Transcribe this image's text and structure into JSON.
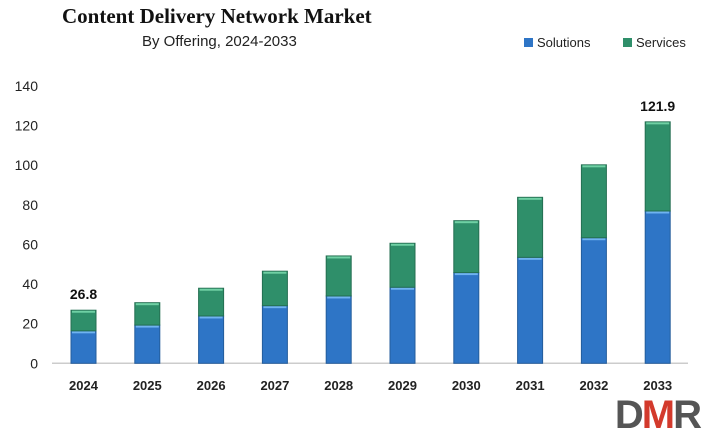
{
  "chart_data": {
    "type": "bar",
    "stacked": true,
    "title": "Content Delivery Network Market",
    "subtitle": "By Offering, 2024-2033",
    "xlabel": "",
    "ylabel": "",
    "ylim": [
      0,
      140
    ],
    "yticks": [
      0,
      20,
      40,
      60,
      80,
      100,
      120,
      140
    ],
    "grid": false,
    "legend_position": "top-right",
    "categories": [
      "2024",
      "2025",
      "2026",
      "2027",
      "2028",
      "2029",
      "2030",
      "2031",
      "2032",
      "2033"
    ],
    "series": [
      {
        "name": "Solutions",
        "color": "#2e75c6",
        "values": [
          16.4,
          19.3,
          23.9,
          29.1,
          34.0,
          38.4,
          45.8,
          53.5,
          63.4,
          76.9
        ]
      },
      {
        "name": "Services",
        "color": "#2f8f6a",
        "values": [
          10.4,
          11.3,
          14.0,
          17.4,
          20.2,
          22.2,
          26.2,
          30.3,
          36.8,
          45.0
        ]
      }
    ],
    "data_labels": [
      {
        "category": "2024",
        "text": "26.8"
      },
      {
        "category": "2033",
        "text": "121.9"
      }
    ]
  },
  "logo": {
    "text": "DMR",
    "colors": [
      "#555555",
      "#d33a2c",
      "#555555"
    ]
  }
}
